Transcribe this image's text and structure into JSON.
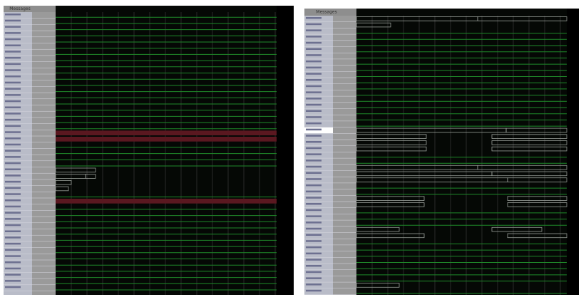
{
  "panels": [
    {
      "header": "Messages"
    },
    {
      "header": "Messages"
    }
  ]
}
